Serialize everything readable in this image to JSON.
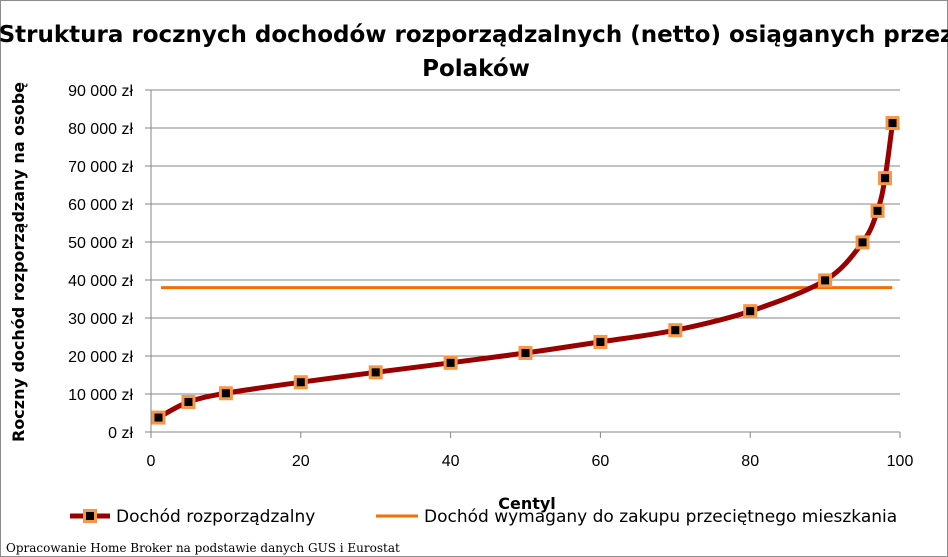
{
  "chart_data": {
    "type": "line",
    "title_line1": "Struktura rocznych dochodów rozporządzalnych (netto) osiąganych przez",
    "title_line2": "Polaków",
    "xlabel": "Centyl",
    "ylabel": "Roczny dochód rozporządzany na osobę",
    "xlim": [
      0,
      100
    ],
    "ylim": [
      0,
      90000
    ],
    "x_ticks": [
      0,
      20,
      40,
      60,
      80,
      100
    ],
    "y_ticks": [
      0,
      10000,
      20000,
      30000,
      40000,
      50000,
      60000,
      70000,
      80000,
      90000
    ],
    "y_tick_labels": [
      "0 zł",
      "10 000 zł",
      "20 000 zł",
      "30 000 zł",
      "40 000 zł",
      "50 000 zł",
      "60 000 zł",
      "70 000 zł",
      "80 000 zł",
      "90 000 zł"
    ],
    "grid": "horizontal",
    "legend_position": "bottom",
    "series": [
      {
        "name": "Dochód rozporządzalny",
        "color": "#990000",
        "marker_fill": "#000000",
        "marker_edge": "#f79646",
        "x": [
          1,
          5,
          10,
          20,
          30,
          40,
          50,
          60,
          70,
          80,
          90,
          95,
          97,
          98,
          99
        ],
        "y": [
          3800,
          7900,
          10200,
          13100,
          15700,
          18200,
          20800,
          23700,
          26800,
          31800,
          39900,
          49900,
          58200,
          66800,
          81300
        ]
      },
      {
        "name": "Dochód wymagany do zakupu przeciętnego mieszkania",
        "color": "#f36f06",
        "x": [
          0,
          99.5
        ],
        "y": [
          38000,
          38000
        ]
      }
    ]
  },
  "footer": {
    "credit": "Opracowanie Home Broker na podstawie danych GUS i Eurostat"
  }
}
